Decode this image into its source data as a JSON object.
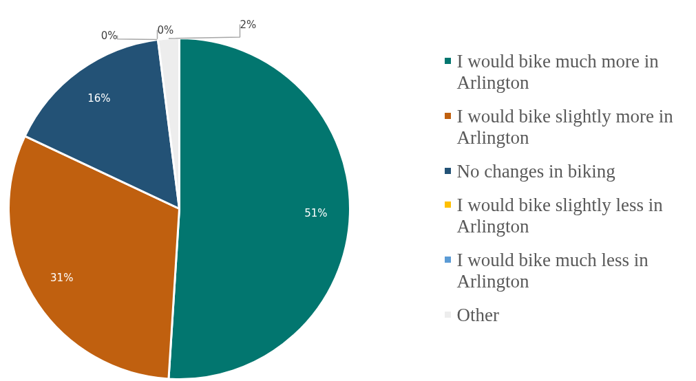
{
  "chart_data": {
    "type": "pie",
    "categories": [
      "I would bike much more in Arlington",
      "I would bike slightly more in Arlington",
      "No changes in biking",
      "I would bike slightly less in Arlington",
      "I would bike much less in Arlington",
      "Other"
    ],
    "values": [
      51,
      31,
      16,
      0,
      0,
      2
    ],
    "colors": [
      "#02766f",
      "#c0600f",
      "#235276",
      "#ffc000",
      "#5b9bd5",
      "#ededed"
    ],
    "value_labels": [
      "51%",
      "31%",
      "16%",
      "0%",
      "0%",
      "2%"
    ],
    "legend": "right"
  }
}
